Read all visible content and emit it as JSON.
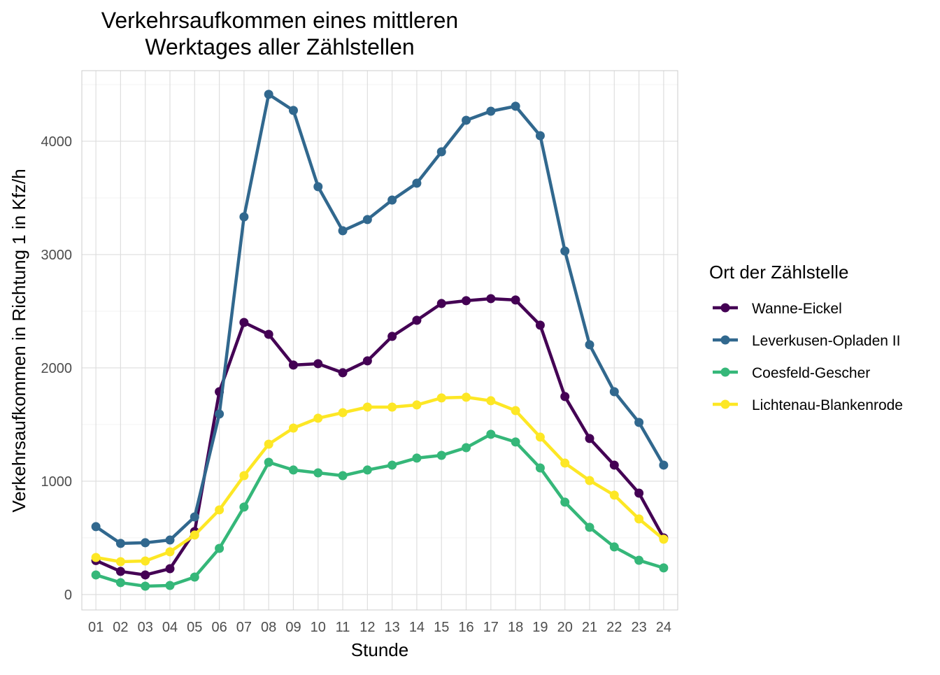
{
  "chart_data": {
    "type": "line",
    "title_lines": [
      "Verkehrsaufkommen eines mittleren",
      "Werktages aller Zählstellen"
    ],
    "xlabel": "Stunde",
    "ylabel": "Verkehrsaufkommen in Richtung 1 in Kfz/h",
    "x": [
      "01",
      "02",
      "03",
      "04",
      "05",
      "06",
      "07",
      "08",
      "09",
      "10",
      "11",
      "12",
      "13",
      "14",
      "15",
      "16",
      "17",
      "18",
      "19",
      "20",
      "21",
      "22",
      "23",
      "24"
    ],
    "yticks": [
      0,
      1000,
      2000,
      3000,
      4000
    ],
    "ylim": [
      -136,
      4623
    ],
    "grid": true,
    "legend": {
      "title": "Ort der Zählstelle",
      "placement": "right"
    },
    "series": [
      {
        "name": "Wanne-Eickel",
        "color": "#440154",
        "values": [
          300,
          204,
          173,
          228,
          556,
          1790,
          2401,
          2296,
          2025,
          2037,
          1957,
          2062,
          2278,
          2420,
          2568,
          2593,
          2611,
          2599,
          2377,
          1747,
          1377,
          1142,
          895,
          500
        ]
      },
      {
        "name": "Leverkusen-Opladen II",
        "color": "#31688E",
        "values": [
          599,
          451,
          457,
          481,
          685,
          1593,
          3333,
          4414,
          4272,
          3599,
          3210,
          3309,
          3481,
          3630,
          3907,
          4185,
          4265,
          4309,
          4049,
          3031,
          2204,
          1790,
          1519,
          1142
        ]
      },
      {
        "name": "Coesfeld-Gescher",
        "color": "#35B779",
        "values": [
          173,
          105,
          74,
          80,
          154,
          407,
          772,
          1167,
          1099,
          1074,
          1049,
          1099,
          1142,
          1204,
          1228,
          1296,
          1414,
          1346,
          1117,
          815,
          593,
          420,
          302,
          235
        ]
      },
      {
        "name": "Lichtenau-Blankenrode",
        "color": "#FDE725",
        "values": [
          327,
          290,
          296,
          377,
          525,
          747,
          1049,
          1327,
          1469,
          1556,
          1605,
          1654,
          1654,
          1673,
          1735,
          1741,
          1710,
          1623,
          1389,
          1160,
          1006,
          877,
          667,
          488
        ]
      }
    ]
  }
}
